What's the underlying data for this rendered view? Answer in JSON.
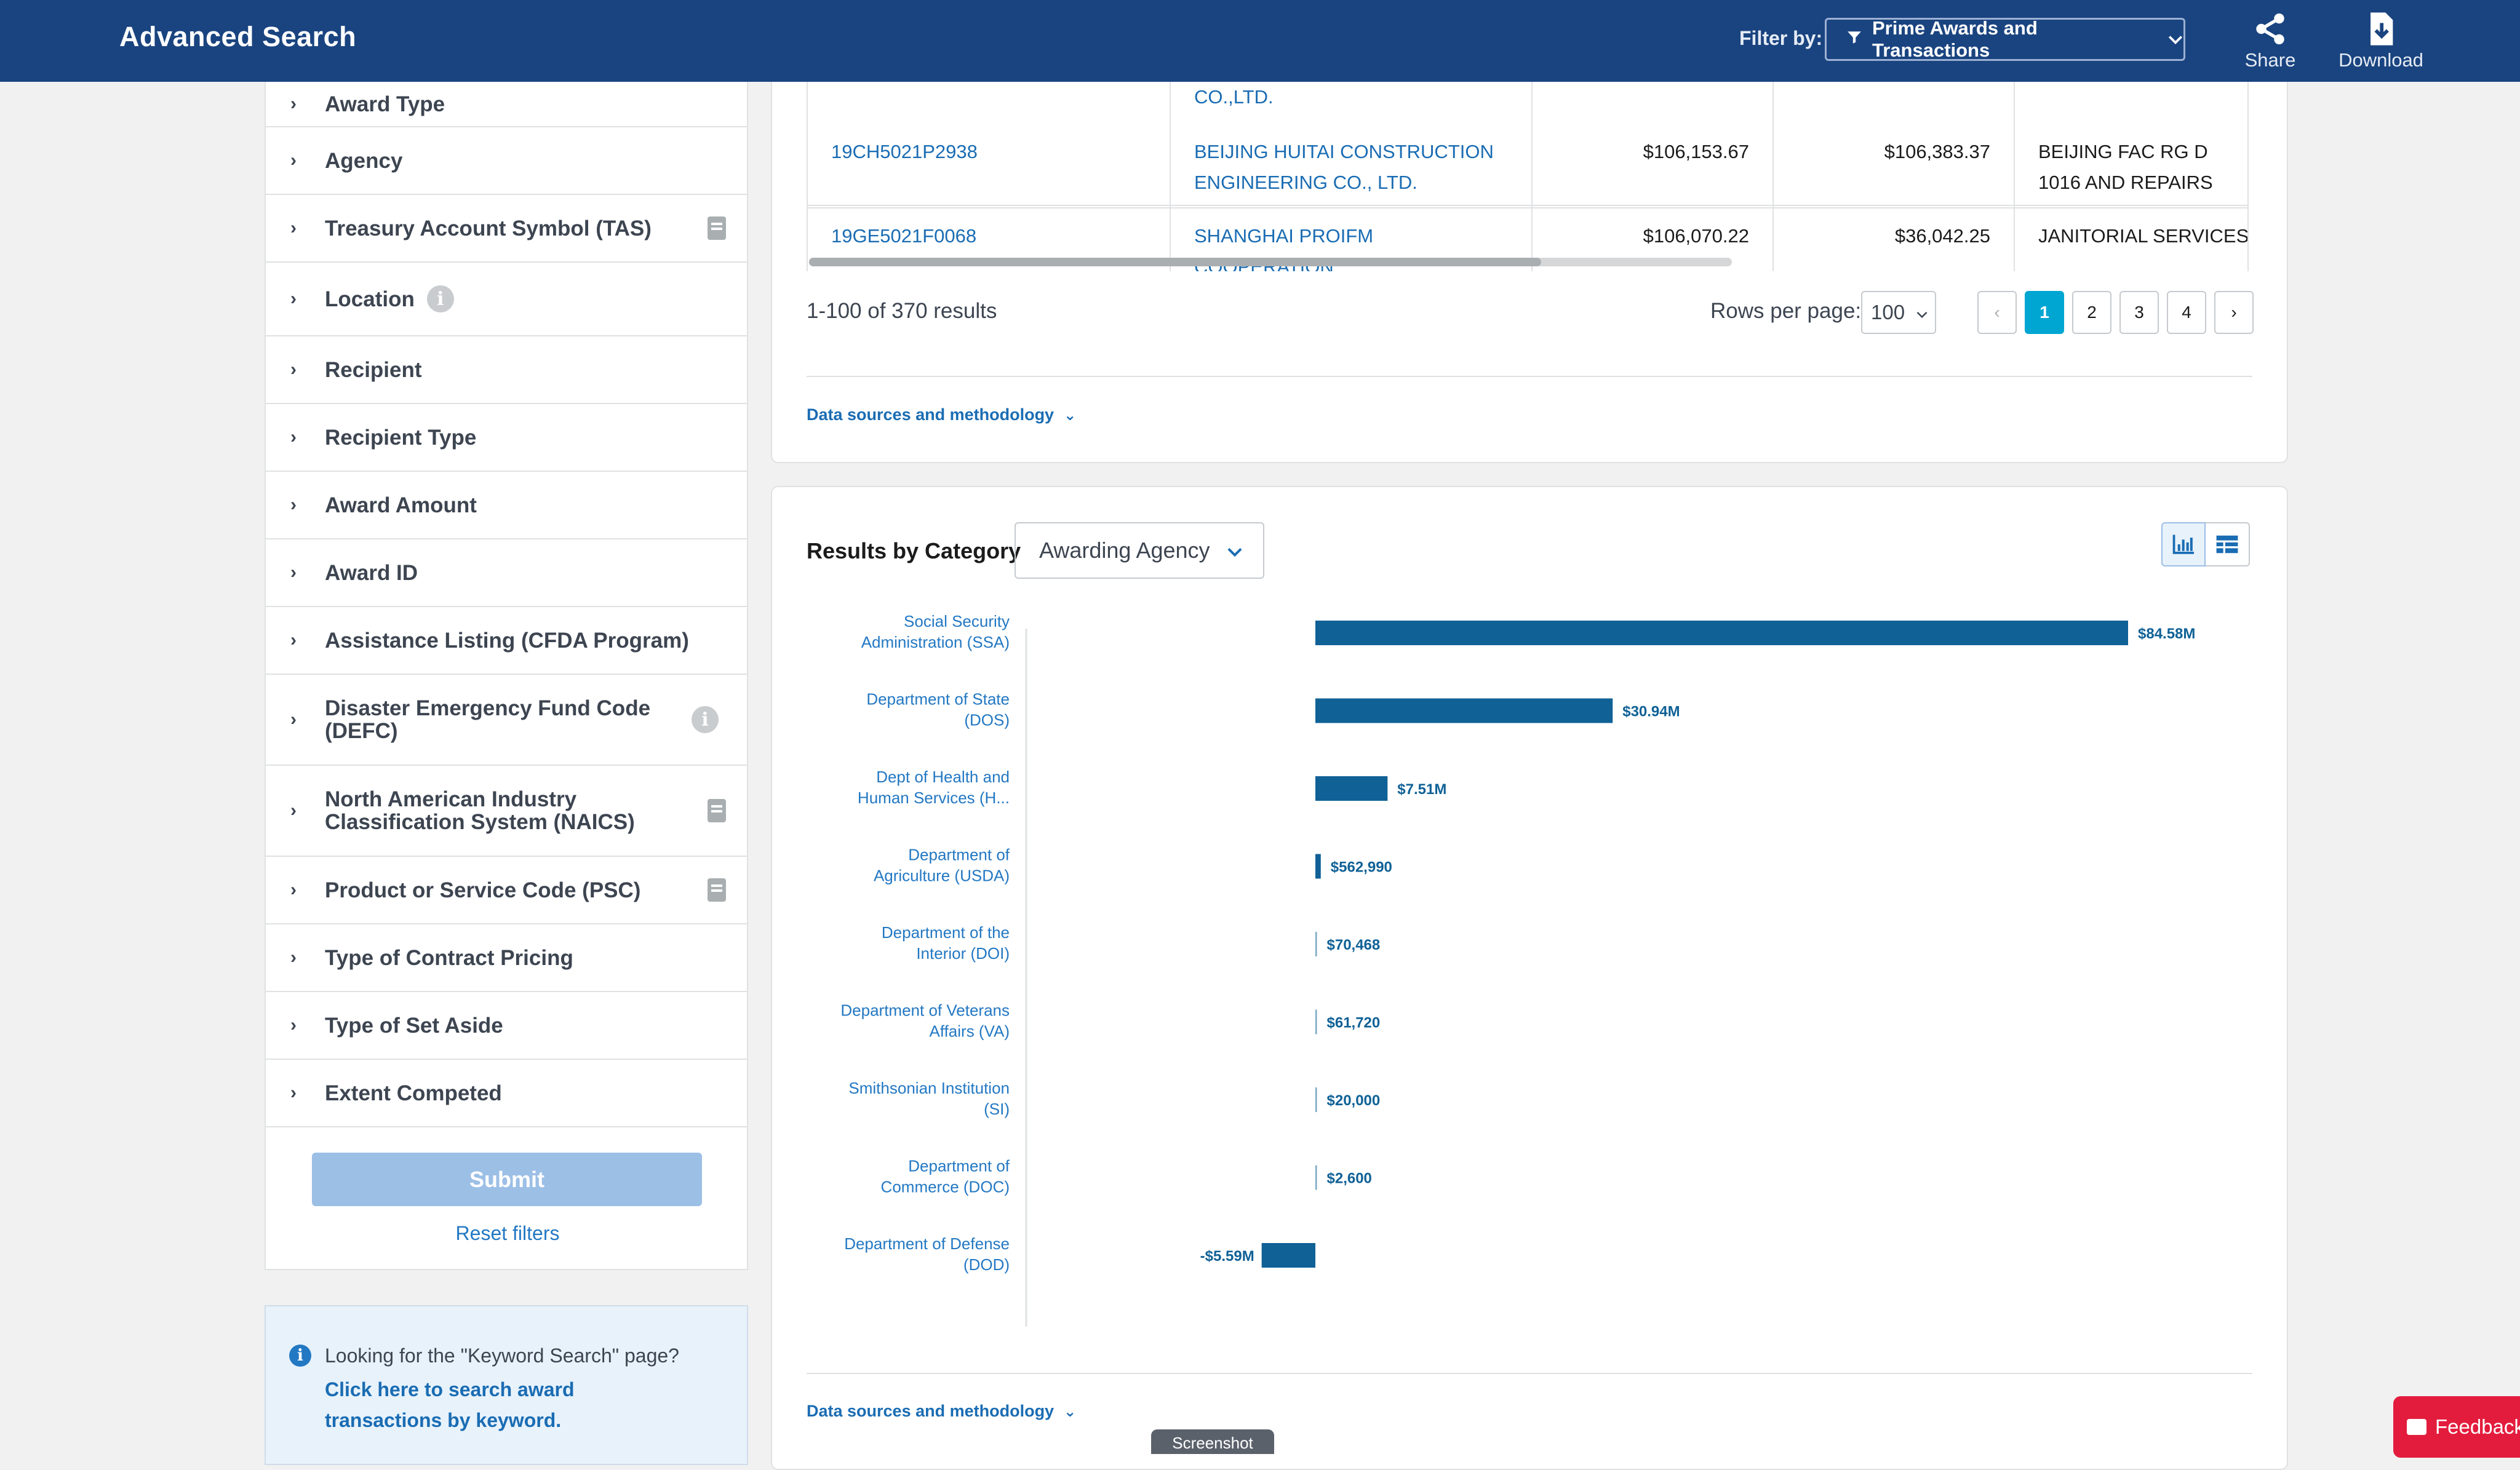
{
  "header": {
    "title": "Advanced Search",
    "filter_by_label": "Filter by:",
    "filter_value": "Prime Awards and Transactions",
    "share_label": "Share",
    "download_label": "Download",
    "background_color": "#1a4480"
  },
  "sidebar": {
    "filters": [
      {
        "label": "Award Type",
        "icon": ""
      },
      {
        "label": "Agency",
        "icon": ""
      },
      {
        "label": "Treasury Account Symbol (TAS)",
        "icon": "book-icon"
      },
      {
        "label": "Location",
        "icon": "info-icon"
      },
      {
        "label": "Recipient",
        "icon": ""
      },
      {
        "label": "Recipient Type",
        "icon": ""
      },
      {
        "label": "Award Amount",
        "icon": ""
      },
      {
        "label": "Award ID",
        "icon": ""
      },
      {
        "label": "Assistance Listing (CFDA Program)",
        "icon": ""
      },
      {
        "label": "Disaster Emergency Fund Code (DEFC)",
        "icon": "info-icon"
      },
      {
        "label": "North American Industry Classification System (NAICS)",
        "icon": "book-icon"
      },
      {
        "label": "Product or Service Code (PSC)",
        "icon": "book-icon"
      },
      {
        "label": "Type of Contract Pricing",
        "icon": ""
      },
      {
        "label": "Type of Set Aside",
        "icon": ""
      },
      {
        "label": "Extent Competed",
        "icon": ""
      }
    ],
    "submit_label": "Submit",
    "reset_label": "Reset filters",
    "keyword_prompt": "Looking for the \"Keyword Search\" page?",
    "keyword_link": "Click here to search award transactions by keyword."
  },
  "table": {
    "rows": [
      {
        "award_id": "",
        "recipient": "CO.,LTD.",
        "amount1": "",
        "amount2": "",
        "description": ""
      },
      {
        "award_id": "19CH5021P2938",
        "recipient": "BEIJING HUITAI CONSTRUCTION ENGINEERING CO., LTD.",
        "amount1": "$106,153.67",
        "amount2": "$106,383.37",
        "description": "BEIJING FAC RG D 1016 AND REPAIRS"
      },
      {
        "award_id": "19GE5021F0068",
        "recipient": "SHANGHAI PROIFM COOPERATION",
        "amount1": "$106,070.22",
        "amount2": "$36,042.25",
        "description": "JANITORIAL SERVICES A"
      }
    ],
    "results_count": "1-100 of 370 results",
    "rows_per_page_label": "Rows per page:",
    "rows_per_page_value": "100",
    "pages": [
      "1",
      "2",
      "3",
      "4"
    ],
    "active_page": "1",
    "data_sources_label": "Data sources and methodology"
  },
  "category": {
    "title": "Results by Category",
    "select_value": "Awarding Agency",
    "data_sources_label": "Data sources and methodology",
    "bar_color": "#0f6196",
    "label_color": "#2378c3"
  },
  "chart_data": {
    "type": "bar",
    "orientation": "horizontal",
    "categories": [
      [
        "Social Security",
        "Administration (SSA)"
      ],
      [
        "Department of State",
        "(DOS)"
      ],
      [
        "Dept of Health and",
        "Human Services (H..."
      ],
      [
        "Department of",
        "Agriculture (USDA)"
      ],
      [
        "Department of the",
        "Interior (DOI)"
      ],
      [
        "Department of Veterans",
        "Affairs (VA)"
      ],
      [
        "Smithsonian Institution",
        "(SI)"
      ],
      [
        "Department of",
        "Commerce (DOC)"
      ],
      [
        "Department of Defense",
        "(DOD)"
      ]
    ],
    "values": [
      84580000,
      30940000,
      7510000,
      562990,
      70468,
      61720,
      20000,
      2600,
      -5590000
    ],
    "data_labels": [
      "$84.58M",
      "$30.94M",
      "$7.51M",
      "$562,990",
      "$70,468",
      "$61,720",
      "$20,000",
      "$2,600",
      "-$5.59M"
    ],
    "xlim": [
      -30000000,
      100000000
    ],
    "grid": false,
    "legend": "none"
  },
  "overlays": {
    "screenshot_tab": "Screenshot",
    "feedback_label": "Feedback"
  }
}
